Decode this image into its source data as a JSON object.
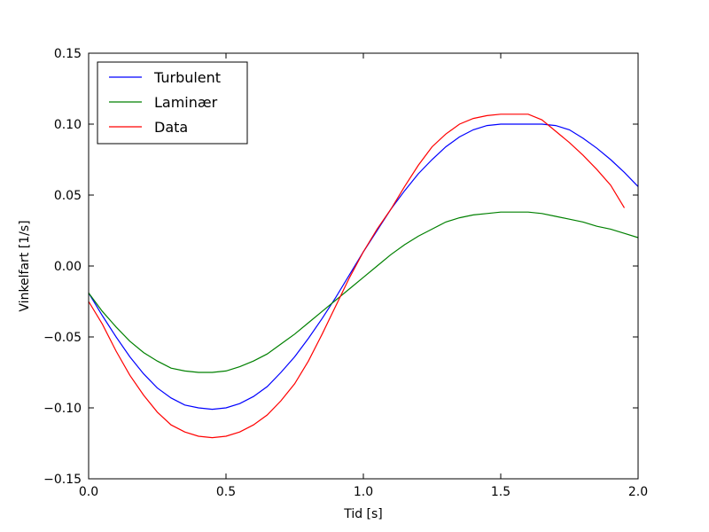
{
  "chart_data": {
    "type": "line",
    "title": "",
    "xlabel": "Tid [s]",
    "ylabel": "Vinkelfart [1/s]",
    "xlim": [
      0.0,
      2.0
    ],
    "ylim": [
      -0.15,
      0.15
    ],
    "grid": false,
    "legend_position": "top-left",
    "x_ticks": [
      {
        "value": 0.0,
        "label": "0.0"
      },
      {
        "value": 0.5,
        "label": "0.5"
      },
      {
        "value": 1.0,
        "label": "1.0"
      },
      {
        "value": 1.5,
        "label": "1.5"
      },
      {
        "value": 2.0,
        "label": "2.0"
      }
    ],
    "y_ticks": [
      {
        "value": 0.15,
        "label": "0.15"
      },
      {
        "value": 0.1,
        "label": "0.10"
      },
      {
        "value": 0.05,
        "label": "0.05"
      },
      {
        "value": 0.0,
        "label": "0.00"
      },
      {
        "value": -0.05,
        "label": "−0.05"
      },
      {
        "value": -0.1,
        "label": "−0.10"
      },
      {
        "value": -0.15,
        "label": "−0.15"
      }
    ],
    "series": [
      {
        "name": "Turbulent",
        "color": "#0000ff",
        "x": [
          0.0,
          0.05,
          0.1,
          0.15,
          0.2,
          0.25,
          0.3,
          0.35,
          0.4,
          0.45,
          0.5,
          0.55,
          0.6,
          0.65,
          0.7,
          0.75,
          0.8,
          0.85,
          0.9,
          0.95,
          1.0,
          1.05,
          1.1,
          1.15,
          1.2,
          1.25,
          1.3,
          1.35,
          1.4,
          1.45,
          1.5,
          1.55,
          1.6,
          1.65,
          1.7,
          1.75,
          1.8,
          1.85,
          1.9,
          1.95,
          2.0
        ],
        "y": [
          -0.019,
          -0.035,
          -0.05,
          -0.064,
          -0.076,
          -0.086,
          -0.093,
          -0.098,
          -0.1,
          -0.101,
          -0.1,
          -0.097,
          -0.092,
          -0.085,
          -0.075,
          -0.064,
          -0.051,
          -0.037,
          -0.022,
          -0.006,
          0.01,
          0.025,
          0.04,
          0.053,
          0.065,
          0.075,
          0.084,
          0.091,
          0.096,
          0.099,
          0.1,
          0.1,
          0.1,
          0.1,
          0.099,
          0.096,
          0.09,
          0.083,
          0.075,
          0.066,
          0.056
        ]
      },
      {
        "name": "Laminær",
        "color": "#008000",
        "x": [
          0.0,
          0.05,
          0.1,
          0.15,
          0.2,
          0.25,
          0.3,
          0.35,
          0.4,
          0.45,
          0.5,
          0.55,
          0.6,
          0.65,
          0.7,
          0.75,
          0.8,
          0.85,
          0.9,
          0.95,
          1.0,
          1.05,
          1.1,
          1.15,
          1.2,
          1.25,
          1.3,
          1.35,
          1.4,
          1.45,
          1.5,
          1.55,
          1.6,
          1.65,
          1.7,
          1.75,
          1.8,
          1.85,
          1.9,
          1.95,
          2.0
        ],
        "y": [
          -0.019,
          -0.032,
          -0.043,
          -0.053,
          -0.061,
          -0.067,
          -0.072,
          -0.074,
          -0.075,
          -0.075,
          -0.074,
          -0.071,
          -0.067,
          -0.062,
          -0.055,
          -0.048,
          -0.04,
          -0.032,
          -0.024,
          -0.016,
          -0.008,
          0.0,
          0.008,
          0.015,
          0.021,
          0.026,
          0.031,
          0.034,
          0.036,
          0.037,
          0.038,
          0.038,
          0.038,
          0.037,
          0.035,
          0.033,
          0.031,
          0.028,
          0.026,
          0.023,
          0.02
        ]
      },
      {
        "name": "Data",
        "color": "#ff0000",
        "x": [
          0.0,
          0.05,
          0.1,
          0.15,
          0.2,
          0.25,
          0.3,
          0.35,
          0.4,
          0.45,
          0.5,
          0.55,
          0.6,
          0.65,
          0.7,
          0.75,
          0.8,
          0.85,
          0.9,
          0.95,
          1.0,
          1.05,
          1.1,
          1.15,
          1.2,
          1.25,
          1.3,
          1.35,
          1.4,
          1.45,
          1.5,
          1.55,
          1.6,
          1.65,
          1.7,
          1.75,
          1.8,
          1.85,
          1.9,
          1.95
        ],
        "y": [
          -0.025,
          -0.041,
          -0.06,
          -0.077,
          -0.091,
          -0.103,
          -0.112,
          -0.117,
          -0.12,
          -0.121,
          -0.12,
          -0.117,
          -0.112,
          -0.105,
          -0.095,
          -0.083,
          -0.067,
          -0.048,
          -0.028,
          -0.008,
          0.01,
          0.026,
          0.04,
          0.056,
          0.071,
          0.084,
          0.093,
          0.1,
          0.104,
          0.106,
          0.107,
          0.107,
          0.107,
          0.103,
          0.095,
          0.087,
          0.078,
          0.068,
          0.057,
          0.041
        ]
      }
    ]
  }
}
